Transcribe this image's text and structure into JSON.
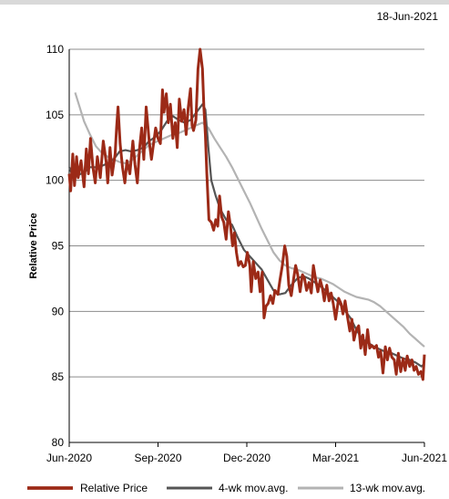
{
  "header": {
    "date": "18-Jun-2021"
  },
  "colors": {
    "relative": "#9c2a17",
    "ma4": "#555555",
    "ma13": "#b3b3b3",
    "grid": "#8c8c8c"
  },
  "chart_data": {
    "type": "line",
    "title": "",
    "xlabel": "",
    "ylabel": "Relative Price",
    "ylim": [
      80,
      110
    ],
    "yticks": [
      80,
      85,
      90,
      95,
      100,
      105,
      110
    ],
    "xlim": [
      0,
      12
    ],
    "xticks": [
      {
        "label": "Jun-2020",
        "pos": 0
      },
      {
        "label": "Sep-2020",
        "pos": 3
      },
      {
        "label": "Dec-2020",
        "pos": 6
      },
      {
        "label": "Mar-2021",
        "pos": 9
      },
      {
        "label": "Jun-2021",
        "pos": 12
      }
    ],
    "grid": true,
    "legend": "bottom",
    "series": [
      {
        "name": "Relative Price",
        "points": [
          [
            0,
            100.5
          ],
          [
            0.05,
            99.2
          ],
          [
            0.12,
            102
          ],
          [
            0.18,
            99.6
          ],
          [
            0.25,
            101.8
          ],
          [
            0.3,
            100.2
          ],
          [
            0.4,
            101.5
          ],
          [
            0.5,
            99.5
          ],
          [
            0.58,
            102.4
          ],
          [
            0.65,
            100.5
          ],
          [
            0.72,
            103.2
          ],
          [
            0.8,
            101
          ],
          [
            0.88,
            99.8
          ],
          [
            0.95,
            101.8
          ],
          [
            1.05,
            100.2
          ],
          [
            1.15,
            103
          ],
          [
            1.25,
            101.4
          ],
          [
            1.3,
            99.8
          ],
          [
            1.38,
            102.5
          ],
          [
            1.45,
            100.4
          ],
          [
            1.55,
            102
          ],
          [
            1.6,
            104
          ],
          [
            1.65,
            105.6
          ],
          [
            1.72,
            102.8
          ],
          [
            1.8,
            101
          ],
          [
            1.88,
            99.8
          ],
          [
            1.95,
            101.5
          ],
          [
            2.05,
            100.5
          ],
          [
            2.15,
            103
          ],
          [
            2.22,
            101.2
          ],
          [
            2.3,
            99.8
          ],
          [
            2.38,
            102.5
          ],
          [
            2.45,
            104
          ],
          [
            2.52,
            101.6
          ],
          [
            2.6,
            105.6
          ],
          [
            2.7,
            103
          ],
          [
            2.78,
            101.6
          ],
          [
            2.85,
            102.8
          ],
          [
            2.92,
            104
          ],
          [
            3,
            103.2
          ],
          [
            3.08,
            102.8
          ],
          [
            3.15,
            106.9
          ],
          [
            3.2,
            105.2
          ],
          [
            3.28,
            106.6
          ],
          [
            3.35,
            104.4
          ],
          [
            3.42,
            105.8
          ],
          [
            3.5,
            103.2
          ],
          [
            3.58,
            104.4
          ],
          [
            3.65,
            102.5
          ],
          [
            3.72,
            106.2
          ],
          [
            3.8,
            104.5
          ],
          [
            3.88,
            105.4
          ],
          [
            3.95,
            103.5
          ],
          [
            4.02,
            105.5
          ],
          [
            4.1,
            107
          ],
          [
            4.15,
            104.2
          ],
          [
            4.2,
            103.8
          ],
          [
            4.28,
            104.6
          ],
          [
            4.35,
            108.5
          ],
          [
            4.42,
            110
          ],
          [
            4.5,
            108.5
          ],
          [
            4.55,
            105.5
          ],
          [
            4.6,
            103.5
          ],
          [
            4.65,
            100.5
          ],
          [
            4.72,
            97
          ],
          [
            4.8,
            96.8
          ],
          [
            4.88,
            96.2
          ],
          [
            4.95,
            97
          ],
          [
            5.02,
            96.5
          ],
          [
            5.08,
            98.8
          ],
          [
            5.15,
            97.2
          ],
          [
            5.22,
            96.8
          ],
          [
            5.3,
            95.5
          ],
          [
            5.38,
            97.6
          ],
          [
            5.45,
            96.5
          ],
          [
            5.52,
            95
          ],
          [
            5.58,
            96
          ],
          [
            5.65,
            94.5
          ],
          [
            5.72,
            93.5
          ],
          [
            5.8,
            93.8
          ],
          [
            5.88,
            93.4
          ],
          [
            5.95,
            93.5
          ],
          [
            6.02,
            94.5
          ],
          [
            6.1,
            93.5
          ],
          [
            6.15,
            91.5
          ],
          [
            6.22,
            93.8
          ],
          [
            6.3,
            92.5
          ],
          [
            6.38,
            93
          ],
          [
            6.45,
            91.5
          ],
          [
            6.52,
            93
          ],
          [
            6.58,
            89.5
          ],
          [
            6.65,
            90.4
          ],
          [
            6.72,
            90.6
          ],
          [
            6.8,
            91.2
          ],
          [
            6.88,
            90.6
          ],
          [
            6.95,
            91.6
          ],
          [
            7.05,
            91.3
          ],
          [
            7.12,
            92.4
          ],
          [
            7.2,
            93.5
          ],
          [
            7.28,
            95
          ],
          [
            7.35,
            94.2
          ],
          [
            7.42,
            92
          ],
          [
            7.5,
            91.2
          ],
          [
            7.58,
            92.5
          ],
          [
            7.65,
            93.5
          ],
          [
            7.72,
            92.8
          ],
          [
            7.8,
            91.5
          ],
          [
            7.88,
            92.8
          ],
          [
            7.95,
            92.5
          ],
          [
            8.02,
            91.6
          ],
          [
            8.1,
            92.2
          ],
          [
            8.18,
            91.4
          ],
          [
            8.25,
            93.5
          ],
          [
            8.32,
            92.5
          ],
          [
            8.4,
            91.5
          ],
          [
            8.48,
            92.4
          ],
          [
            8.55,
            91.8
          ],
          [
            8.62,
            90.8
          ],
          [
            8.7,
            92
          ],
          [
            8.78,
            90.8
          ],
          [
            8.85,
            91.4
          ],
          [
            8.92,
            90.6
          ],
          [
            9,
            89.4
          ],
          [
            9.1,
            91
          ],
          [
            9.18,
            90.6
          ],
          [
            9.25,
            89.8
          ],
          [
            9.32,
            90.8
          ],
          [
            9.4,
            89.6
          ],
          [
            9.48,
            88.5
          ],
          [
            9.55,
            89.4
          ],
          [
            9.62,
            87.8
          ],
          [
            9.7,
            88.6
          ],
          [
            9.78,
            88.9
          ],
          [
            9.85,
            87.2
          ],
          [
            9.92,
            88.2
          ],
          [
            10,
            86.7
          ],
          [
            10.08,
            88.6
          ],
          [
            10.15,
            87.2
          ],
          [
            10.22,
            87.4
          ],
          [
            10.3,
            87.2
          ],
          [
            10.38,
            87.4
          ],
          [
            10.45,
            86.5
          ],
          [
            10.52,
            87
          ],
          [
            10.6,
            85.3
          ],
          [
            10.68,
            87.3
          ],
          [
            10.75,
            86.3
          ],
          [
            10.82,
            87.2
          ],
          [
            10.9,
            86.5
          ],
          [
            10.98,
            86.3
          ],
          [
            11.05,
            85.2
          ],
          [
            11.12,
            86.8
          ],
          [
            11.2,
            85.4
          ],
          [
            11.28,
            86.4
          ],
          [
            11.35,
            85.5
          ],
          [
            11.42,
            86.6
          ],
          [
            11.5,
            85.8
          ],
          [
            11.58,
            86.3
          ],
          [
            11.65,
            85.5
          ],
          [
            11.72,
            85.8
          ],
          [
            11.8,
            85.2
          ],
          [
            11.88,
            85.4
          ],
          [
            11.95,
            84.8
          ],
          [
            12,
            86.7
          ]
        ]
      },
      {
        "name": "4-wk mov.avg.",
        "points": [
          [
            0,
            101
          ],
          [
            0.15,
            100.2
          ],
          [
            0.3,
            100.4
          ],
          [
            0.5,
            100.6
          ],
          [
            0.7,
            101
          ],
          [
            0.9,
            101
          ],
          [
            1.1,
            101.1
          ],
          [
            1.3,
            101.3
          ],
          [
            1.5,
            101.6
          ],
          [
            1.7,
            102.2
          ],
          [
            1.9,
            102.3
          ],
          [
            2.1,
            102.2
          ],
          [
            2.3,
            102.3
          ],
          [
            2.5,
            102.5
          ],
          [
            2.7,
            103
          ],
          [
            2.9,
            103.3
          ],
          [
            3.1,
            103.8
          ],
          [
            3.3,
            104.5
          ],
          [
            3.5,
            104.9
          ],
          [
            3.7,
            104.6
          ],
          [
            3.9,
            104.4
          ],
          [
            4.1,
            104.6
          ],
          [
            4.3,
            105.2
          ],
          [
            4.5,
            105.8
          ],
          [
            4.6,
            105.4
          ],
          [
            4.65,
            104
          ],
          [
            4.7,
            102.5
          ],
          [
            4.8,
            100
          ],
          [
            4.95,
            98.8
          ],
          [
            5.1,
            97.8
          ],
          [
            5.3,
            97
          ],
          [
            5.5,
            96.6
          ],
          [
            5.7,
            95.6
          ],
          [
            5.9,
            94.7
          ],
          [
            6.1,
            94.2
          ],
          [
            6.3,
            93.7
          ],
          [
            6.5,
            93.2
          ],
          [
            6.7,
            92.4
          ],
          [
            6.9,
            91.6
          ],
          [
            7.1,
            91.3
          ],
          [
            7.3,
            91.4
          ],
          [
            7.5,
            92
          ],
          [
            7.7,
            92.5
          ],
          [
            7.9,
            92.7
          ],
          [
            8.1,
            92.5
          ],
          [
            8.3,
            92.2
          ],
          [
            8.5,
            91.9
          ],
          [
            8.7,
            91.5
          ],
          [
            8.9,
            91.1
          ],
          [
            9.1,
            90.7
          ],
          [
            9.3,
            90.1
          ],
          [
            9.5,
            89.5
          ],
          [
            9.7,
            88.6
          ],
          [
            9.9,
            87.9
          ],
          [
            10.1,
            87.6
          ],
          [
            10.3,
            87.3
          ],
          [
            10.5,
            87.1
          ],
          [
            10.7,
            86.9
          ],
          [
            10.9,
            86.8
          ],
          [
            11.1,
            86.6
          ],
          [
            11.3,
            86.4
          ],
          [
            11.5,
            86.3
          ],
          [
            11.7,
            86.1
          ],
          [
            11.9,
            85.8
          ],
          [
            12,
            86
          ]
        ]
      },
      {
        "name": "13-wk mov.avg.",
        "points": [
          [
            0.2,
            106.7
          ],
          [
            0.35,
            105.6
          ],
          [
            0.5,
            104.5
          ],
          [
            0.7,
            103.5
          ],
          [
            0.9,
            102.6
          ],
          [
            1.1,
            102.1
          ],
          [
            1.3,
            101.8
          ],
          [
            1.5,
            101.6
          ],
          [
            1.7,
            101.4
          ],
          [
            1.9,
            101.3
          ],
          [
            2.1,
            101.5
          ],
          [
            2.3,
            101.9
          ],
          [
            2.5,
            102.3
          ],
          [
            2.7,
            102.7
          ],
          [
            2.9,
            102.9
          ],
          [
            3.1,
            103.1
          ],
          [
            3.3,
            103.3
          ],
          [
            3.5,
            103.5
          ],
          [
            3.7,
            103.6
          ],
          [
            3.9,
            103.8
          ],
          [
            4.1,
            104
          ],
          [
            4.3,
            104.2
          ],
          [
            4.5,
            104.4
          ],
          [
            4.7,
            104
          ],
          [
            4.9,
            103.2
          ],
          [
            5.1,
            102.5
          ],
          [
            5.3,
            101.8
          ],
          [
            5.5,
            101
          ],
          [
            5.7,
            100.1
          ],
          [
            5.9,
            99.2
          ],
          [
            6.1,
            98.3
          ],
          [
            6.3,
            97.3
          ],
          [
            6.5,
            96.3
          ],
          [
            6.7,
            95.4
          ],
          [
            6.9,
            94.5
          ],
          [
            7.1,
            93.9
          ],
          [
            7.3,
            93.5
          ],
          [
            7.5,
            93.3
          ],
          [
            7.7,
            93.2
          ],
          [
            7.9,
            93
          ],
          [
            8.1,
            92.8
          ],
          [
            8.3,
            92.6
          ],
          [
            8.5,
            92.5
          ],
          [
            8.7,
            92.3
          ],
          [
            8.9,
            92.1
          ],
          [
            9.1,
            91.8
          ],
          [
            9.3,
            91.5
          ],
          [
            9.5,
            91.3
          ],
          [
            9.7,
            91.1
          ],
          [
            9.9,
            91
          ],
          [
            10.1,
            90.9
          ],
          [
            10.3,
            90.7
          ],
          [
            10.5,
            90.4
          ],
          [
            10.7,
            90
          ],
          [
            10.9,
            89.6
          ],
          [
            11.1,
            89.2
          ],
          [
            11.3,
            88.8
          ],
          [
            11.5,
            88.3
          ],
          [
            11.7,
            87.9
          ],
          [
            11.9,
            87.5
          ],
          [
            12,
            87.3
          ]
        ]
      }
    ]
  }
}
